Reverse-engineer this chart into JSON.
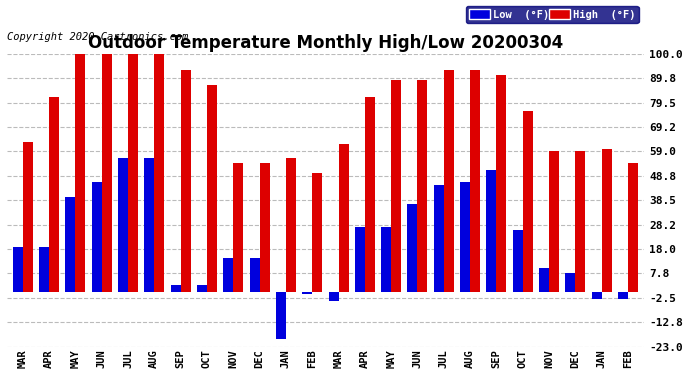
{
  "title": "Outdoor Temperature Monthly High/Low 20200304",
  "copyright": "Copyright 2020 Cartronics.com",
  "months": [
    "MAR",
    "APR",
    "MAY",
    "JUN",
    "JUL",
    "AUG",
    "SEP",
    "OCT",
    "NOV",
    "DEC",
    "JAN",
    "FEB",
    "MAR",
    "APR",
    "MAY",
    "JUN",
    "JUL",
    "AUG",
    "SEP",
    "OCT",
    "NOV",
    "DEC",
    "JAN",
    "FEB"
  ],
  "low_values": [
    19,
    19,
    40,
    46,
    56,
    56,
    3,
    3,
    14,
    14,
    -20,
    -1,
    -4,
    27,
    27,
    37,
    45,
    46,
    51,
    26,
    10,
    8,
    -3,
    -3
  ],
  "high_values": [
    63,
    82,
    100,
    100,
    100,
    100,
    93,
    87,
    54,
    54,
    56,
    50,
    62,
    82,
    89,
    89,
    93,
    93,
    91,
    76,
    59,
    59,
    60,
    54
  ],
  "low_color": "#0000dd",
  "high_color": "#dd0000",
  "bg_color": "#ffffff",
  "plot_bg_color": "#ffffff",
  "grid_color": "#bbbbbb",
  "ylim": [
    -23.0,
    100.0
  ],
  "yticks": [
    -23.0,
    -12.8,
    -2.5,
    7.8,
    18.0,
    28.2,
    38.5,
    48.8,
    59.0,
    69.2,
    79.5,
    89.8,
    100.0
  ],
  "ytick_labels": [
    "-23.0",
    "-12.8",
    "-2.5",
    "7.8",
    "18.0",
    "28.2",
    "38.5",
    "48.8",
    "59.0",
    "69.2",
    "79.5",
    "89.8",
    "100.0"
  ],
  "legend_low_label": "Low  (°F)",
  "legend_high_label": "High  (°F)",
  "title_fontsize": 12,
  "copyright_fontsize": 7.5,
  "bar_width": 0.38
}
